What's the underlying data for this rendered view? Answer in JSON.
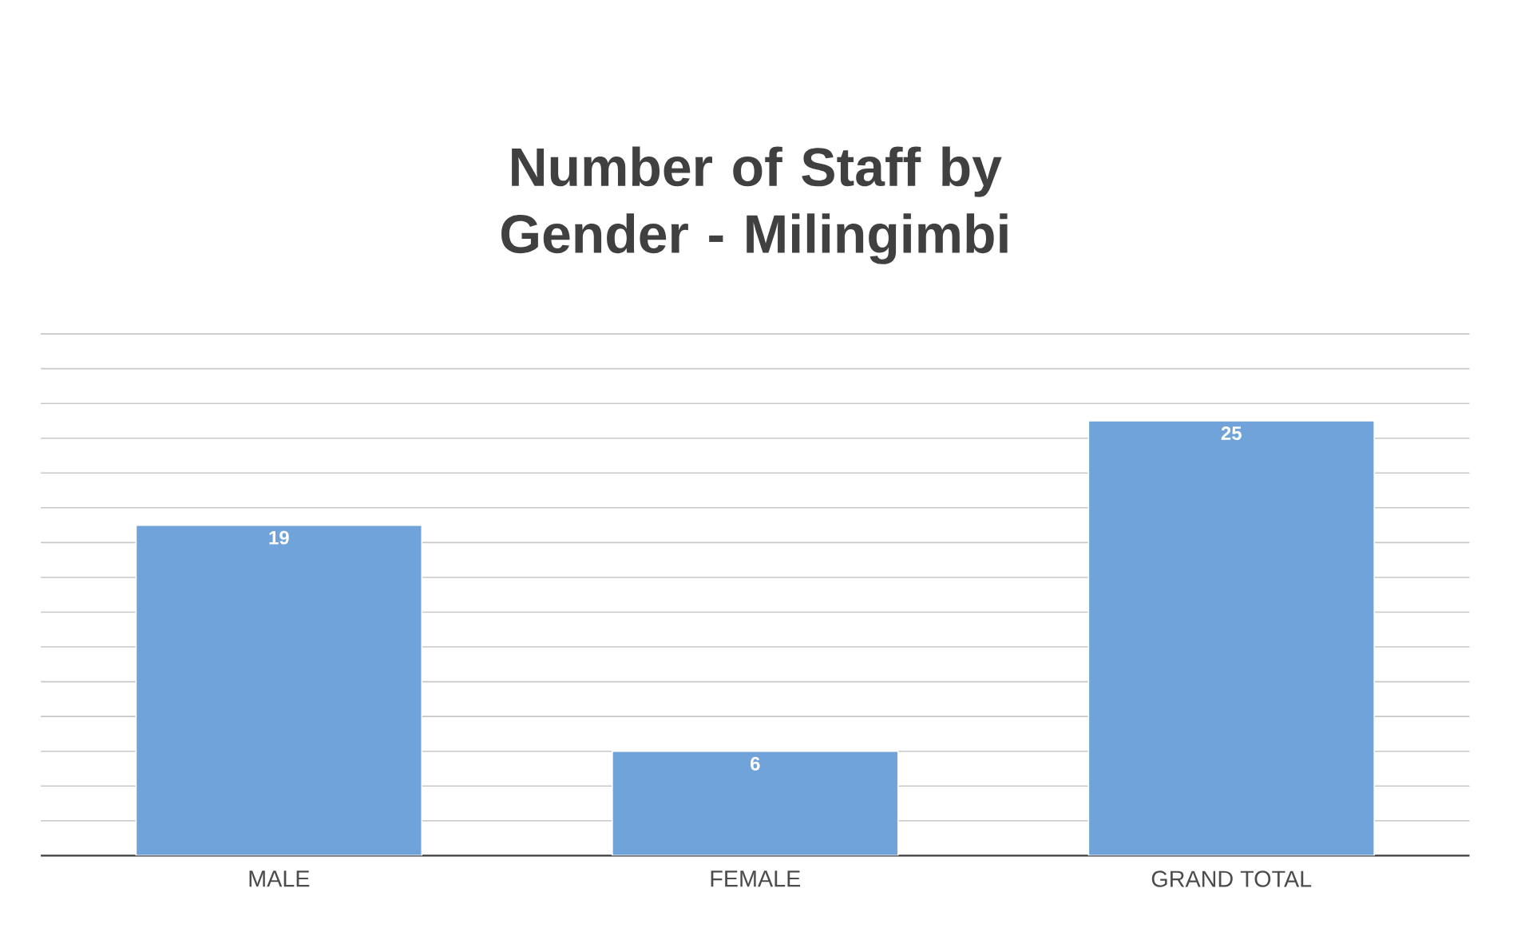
{
  "chart_data": {
    "type": "bar",
    "title": "Number of Staff by Gender - Milingimbi",
    "categories": [
      "MALE",
      "FEMALE",
      "GRAND TOTAL"
    ],
    "values": [
      19,
      6,
      25
    ],
    "color": "#6fa3d9",
    "grid": "y",
    "tick_labels": "x",
    "data_labels": true
  }
}
